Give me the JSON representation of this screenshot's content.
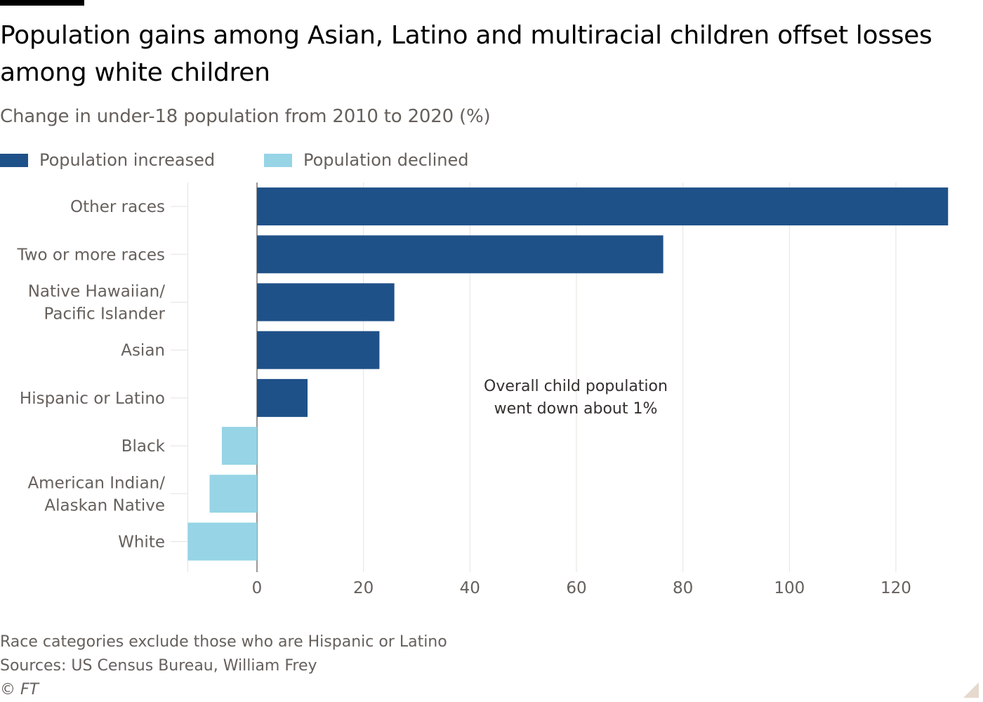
{
  "title": "Population gains among Asian, Latino and multiracial children offset losses among white children",
  "subtitle": "Change in under-18 population from 2010 to 2020 (%)",
  "legend": [
    {
      "label": "Population increased",
      "color": "#1f5189"
    },
    {
      "label": "Population declined",
      "color": "#96d4e6"
    }
  ],
  "annotation": [
    "Overall child population",
    "went down about 1%"
  ],
  "footer": {
    "note": "Race categories exclude those who are Hispanic or Latino",
    "sources": "Sources: US Census Bureau, William Frey",
    "credit": "© FT"
  },
  "colors": {
    "increase": "#1f5189",
    "decline": "#96d4e6",
    "grid": "#e6e3df",
    "text": "#66605c"
  },
  "chart_data": {
    "type": "bar",
    "orientation": "horizontal",
    "categories": [
      [
        "Other races"
      ],
      [
        "Two or more races"
      ],
      [
        "Native Hawaiian/",
        "Pacific Islander"
      ],
      [
        "Asian"
      ],
      [
        "Hispanic or Latino"
      ],
      [
        "Black"
      ],
      [
        "American Indian/",
        "Alaskan Native"
      ],
      [
        "White"
      ]
    ],
    "values": [
      129.8,
      76.3,
      25.8,
      23.0,
      9.5,
      -6.6,
      -8.9,
      -13.0
    ],
    "xlim": [
      -13,
      131
    ],
    "xticks": [
      0,
      20,
      40,
      60,
      80,
      100,
      120
    ],
    "xlabel": "",
    "ylabel": "",
    "grid": "vertical"
  }
}
